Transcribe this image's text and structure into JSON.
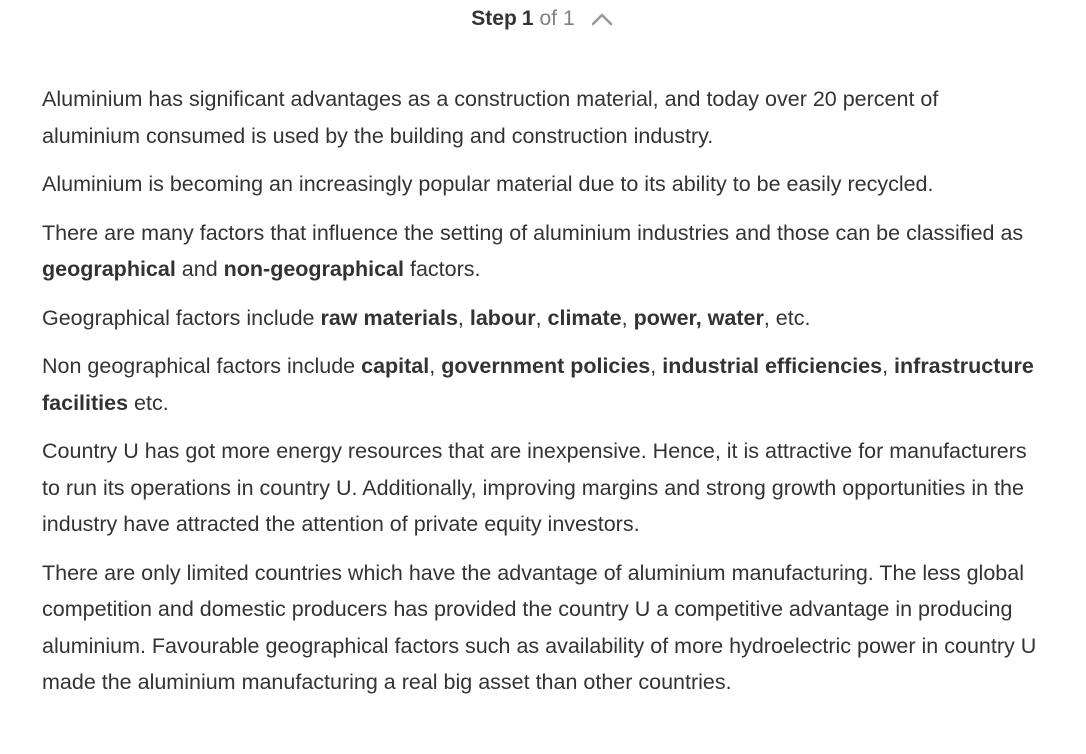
{
  "header": {
    "step_word": "Step",
    "step_number": "1",
    "of_word": "of",
    "step_total": "1",
    "collapse_icon": "chevron-up-icon"
  },
  "paragraphs": [
    {
      "t1": "Aluminium has significant advantages as a construction material, and today over 20 percent of aluminium consumed is used by the building and construction industry."
    },
    {
      "t1": "Aluminium is becoming an increasingly popular material due to its ability to be easily recycled."
    },
    {
      "t1": "There are many factors that influence the setting of aluminium industries and those can be classified as ",
      "b1": "geographical",
      "t2": " and ",
      "b2": "non-geographical",
      "t3": " factors."
    },
    {
      "t1": "Geographical factors include ",
      "b1": "raw materials",
      "t2": ", ",
      "b2": "labour",
      "t3": ", ",
      "b3": "climate",
      "t4": ", ",
      "b4": "power, water",
      "t5": ", etc."
    },
    {
      "t1": "Non geographical factors include ",
      "b1": "capital",
      "t2": ", ",
      "b2": "government policies",
      "t3": ", ",
      "b3": "industrial efficiencies",
      "t4": ", ",
      "b4": "infrastructure facilities",
      "t5": " etc."
    },
    {
      "t1": "Country U has got more energy resources that are inexpensive. Hence, it is attractive for manufacturers to run its operations in country U. Additionally, improving margins and strong growth opportunities in the industry have attracted the attention of private equity investors."
    },
    {
      "t1": "There are only limited countries which have the advantage of aluminium manufacturing. The less global competition and domestic producers has provided the country U a competitive advantage in producing aluminium. Favourable geographical factors such as availability of more hydroelectric power in country U made the aluminium manufacturing a real big asset than other countries."
    }
  ]
}
